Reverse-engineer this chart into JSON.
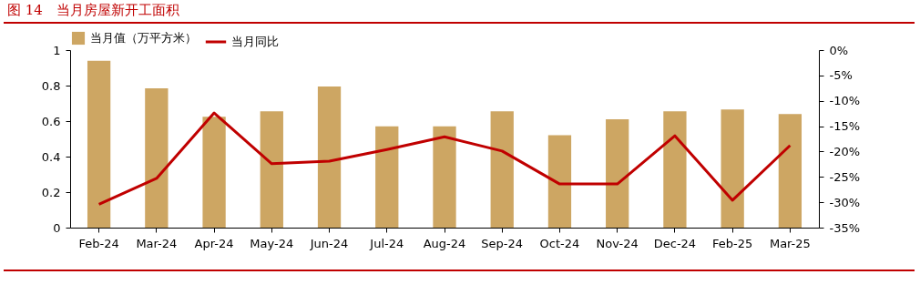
{
  "chart_data": {
    "type": "bar",
    "title": "图 14　当月房屋新开工面积",
    "categories": [
      "Feb-24",
      "Mar-24",
      "Apr-24",
      "May-24",
      "Jun-24",
      "Jul-24",
      "Aug-24",
      "Sep-24",
      "Oct-24",
      "Nov-24",
      "Dec-24",
      "Feb-25",
      "Mar-25"
    ],
    "series": [
      {
        "name": "当月值（万平方米）",
        "color": "#cda663",
        "values": [
          0.94,
          0.785,
          0.625,
          0.655,
          0.795,
          0.57,
          0.57,
          0.655,
          0.52,
          0.61,
          0.655,
          0.665,
          0.64
        ]
      },
      {
        "name": "当月同比",
        "type": "line",
        "axis": "y2",
        "color": "#c00000",
        "values": [
          -30.4,
          -25.3,
          -12.4,
          -22.4,
          -21.9,
          -19.6,
          -17.1,
          -19.9,
          -26.4,
          -26.4,
          -16.9,
          -29.6,
          -18.8
        ]
      }
    ],
    "ylim": [
      0,
      1
    ],
    "yticks": [
      0,
      0.2,
      0.4,
      0.6,
      0.8,
      1
    ],
    "y2lim": [
      -35,
      0
    ],
    "y2ticks": [
      {
        "value": -35,
        "label": "-35%"
      },
      {
        "value": -30,
        "label": "-30%"
      },
      {
        "value": -25,
        "label": "-25%"
      },
      {
        "value": -20,
        "label": "-20%"
      },
      {
        "value": -15,
        "label": "-15%"
      },
      {
        "value": -10,
        "label": "-10%"
      },
      {
        "value": -5,
        "label": "-5%"
      },
      {
        "value": 0,
        "label": "0%"
      }
    ],
    "legend": "top",
    "grid": false
  }
}
